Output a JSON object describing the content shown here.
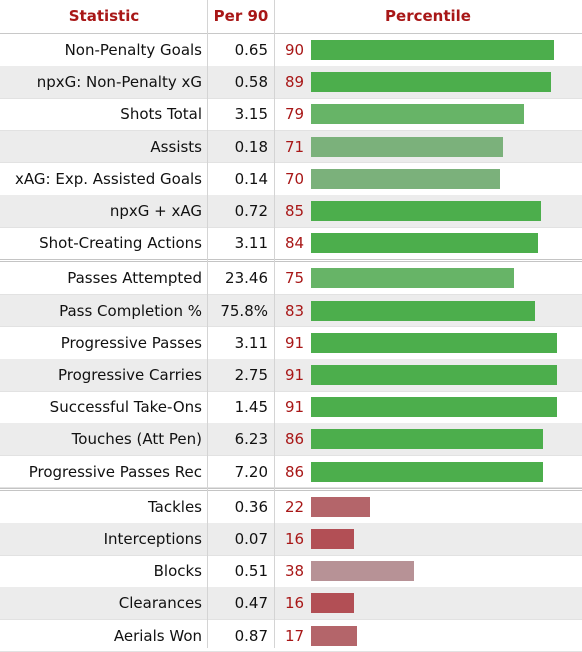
{
  "colors": {
    "green_strong": "#4cae4c",
    "green_mid": "#67b467",
    "green_light": "#7bb17b",
    "red_strong": "#b24f55",
    "red_mid": "#b4656a",
    "red_light": "#b79296",
    "header_text": "#a81717"
  },
  "chart_data": {
    "type": "bar",
    "orientation": "horizontal",
    "headers": [
      "Statistic",
      "Per 90",
      "Percentile"
    ],
    "xlim": [
      0,
      100
    ],
    "groups": [
      {
        "rows": [
          {
            "stat": "Non-Penalty Goals",
            "per90": "0.65",
            "percentile": 90,
            "color": "#4cae4c"
          },
          {
            "stat": "npxG: Non-Penalty xG",
            "per90": "0.58",
            "percentile": 89,
            "color": "#4cae4c"
          },
          {
            "stat": "Shots Total",
            "per90": "3.15",
            "percentile": 79,
            "color": "#67b467"
          },
          {
            "stat": "Assists",
            "per90": "0.18",
            "percentile": 71,
            "color": "#7bb17b"
          },
          {
            "stat": "xAG: Exp. Assisted Goals",
            "per90": "0.14",
            "percentile": 70,
            "color": "#7bb17b"
          },
          {
            "stat": "npxG + xAG",
            "per90": "0.72",
            "percentile": 85,
            "color": "#4cae4c"
          },
          {
            "stat": "Shot-Creating Actions",
            "per90": "3.11",
            "percentile": 84,
            "color": "#4cae4c"
          }
        ]
      },
      {
        "rows": [
          {
            "stat": "Passes Attempted",
            "per90": "23.46",
            "percentile": 75,
            "color": "#67b467"
          },
          {
            "stat": "Pass Completion %",
            "per90": "75.8%",
            "percentile": 83,
            "color": "#4cae4c"
          },
          {
            "stat": "Progressive Passes",
            "per90": "3.11",
            "percentile": 91,
            "color": "#4cae4c"
          },
          {
            "stat": "Progressive Carries",
            "per90": "2.75",
            "percentile": 91,
            "color": "#4cae4c"
          },
          {
            "stat": "Successful Take-Ons",
            "per90": "1.45",
            "percentile": 91,
            "color": "#4cae4c"
          },
          {
            "stat": "Touches (Att Pen)",
            "per90": "6.23",
            "percentile": 86,
            "color": "#4cae4c"
          },
          {
            "stat": "Progressive Passes Rec",
            "per90": "7.20",
            "percentile": 86,
            "color": "#4cae4c"
          }
        ]
      },
      {
        "rows": [
          {
            "stat": "Tackles",
            "per90": "0.36",
            "percentile": 22,
            "color": "#b4656a"
          },
          {
            "stat": "Interceptions",
            "per90": "0.07",
            "percentile": 16,
            "color": "#b24f55"
          },
          {
            "stat": "Blocks",
            "per90": "0.51",
            "percentile": 38,
            "color": "#b79296"
          },
          {
            "stat": "Clearances",
            "per90": "0.47",
            "percentile": 16,
            "color": "#b24f55"
          },
          {
            "stat": "Aerials Won",
            "per90": "0.87",
            "percentile": 17,
            "color": "#b4656a"
          }
        ]
      }
    ]
  }
}
